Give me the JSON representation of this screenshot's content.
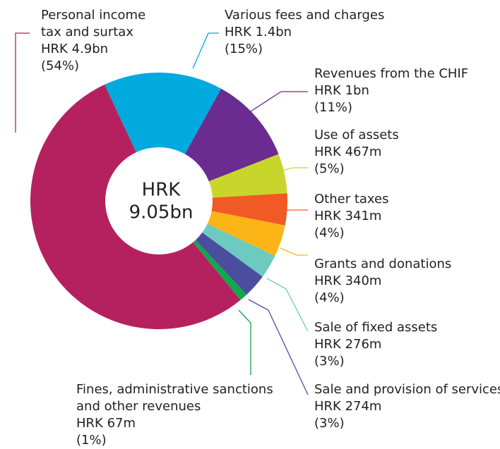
{
  "chart_data": {
    "type": "donut",
    "center_label": [
      "HRK",
      "9.05bn"
    ],
    "categories": [
      [
        "Various fees and charges"
      ],
      [
        "Revenues from the CHIF"
      ],
      [
        "Use of assets"
      ],
      [
        "Other taxes"
      ],
      [
        "Grants and donations"
      ],
      [
        "Sale of fixed assets"
      ],
      [
        "Sale and provision of services"
      ],
      [
        "Fines, administrative sanctions",
        "and other revenues"
      ],
      [
        "Personal income",
        "tax and surtax"
      ]
    ],
    "amounts": [
      "HRK 1.4bn",
      "HRK 1bn",
      "HRK 467m",
      "HRK 341m",
      "HRK 340m",
      "HRK 276m",
      "HRK 274m",
      "HRK 67m",
      "HRK 4.9bn"
    ],
    "values": [
      15,
      11,
      5,
      4,
      4,
      3,
      3,
      1,
      54
    ],
    "value_labels": [
      "(15%)",
      "(11%)",
      "(5%)",
      "(4%)",
      "(4%)",
      "(3%)",
      "(3%)",
      "(1%)",
      "(54%)"
    ],
    "colors": [
      "#00a9de",
      "#6a2c91",
      "#c8d62b",
      "#f15a24",
      "#fbb516",
      "#6ccac0",
      "#4b4e9f",
      "#12a84c",
      "#b5215f"
    ]
  }
}
